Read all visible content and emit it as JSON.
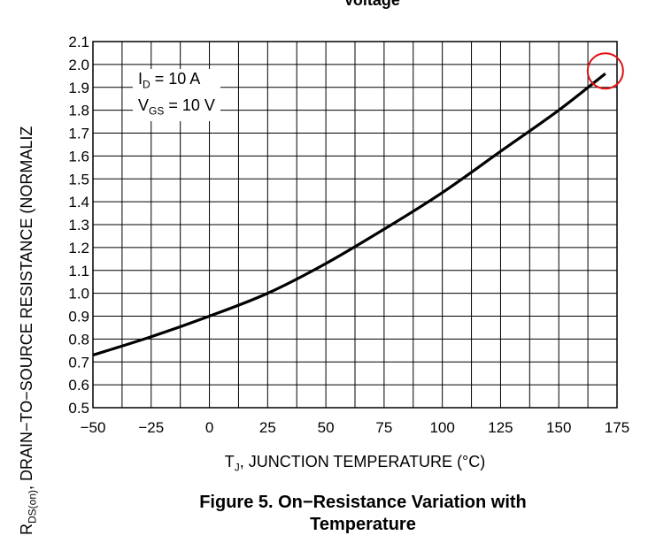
{
  "figure": {
    "top_caption": "Voltage",
    "caption_line1": "Figure 5. On−Resistance Variation with",
    "caption_line2": "Temperature"
  },
  "axes": {
    "y_label_main": "R",
    "y_label_sub": "DS(on)",
    "y_label_rest": ", DRAIN−TO−SOURCE RESISTANCE (NORMALIZ",
    "x_label_main": "T",
    "x_label_sub": "J",
    "x_label_rest": ", JUNCTION TEMPERATURE (°C)"
  },
  "legend": {
    "id_main": "I",
    "id_sub": "D",
    "id_rest": " = 10 A",
    "vgs_main": "V",
    "vgs_sub": "GS",
    "vgs_rest": " = 10 V"
  },
  "chart_data": {
    "type": "line",
    "xlim": [
      -50,
      175
    ],
    "ylim": [
      0.5,
      2.1
    ],
    "x_ticks": [
      "−50",
      "−25",
      "0",
      "25",
      "50",
      "75",
      "100",
      "125",
      "150",
      "175"
    ],
    "x_tick_values": [
      -50,
      -25,
      0,
      25,
      50,
      75,
      100,
      125,
      150,
      175
    ],
    "x_minor_step": 12.5,
    "y_ticks": [
      "0.5",
      "0.6",
      "0.7",
      "0.8",
      "0.9",
      "1.0",
      "1.1",
      "1.2",
      "1.3",
      "1.4",
      "1.5",
      "1.6",
      "1.7",
      "1.8",
      "1.9",
      "2.0",
      "2.1"
    ],
    "y_tick_values": [
      0.5,
      0.6,
      0.7,
      0.8,
      0.9,
      1.0,
      1.1,
      1.2,
      1.3,
      1.4,
      1.5,
      1.6,
      1.7,
      1.8,
      1.9,
      2.0,
      2.1
    ],
    "grid": true,
    "series": [
      {
        "x": [
          -50,
          -25,
          0,
          25,
          50,
          75,
          100,
          125,
          150,
          170
        ],
        "y": [
          0.73,
          0.81,
          0.9,
          1.0,
          1.13,
          1.28,
          1.44,
          1.62,
          1.8,
          1.96
        ]
      }
    ],
    "highlight_point": {
      "x": 170,
      "y": 1.96
    },
    "colors": {
      "line": "#000000",
      "grid": "#000000",
      "highlight": "#e01010"
    }
  }
}
